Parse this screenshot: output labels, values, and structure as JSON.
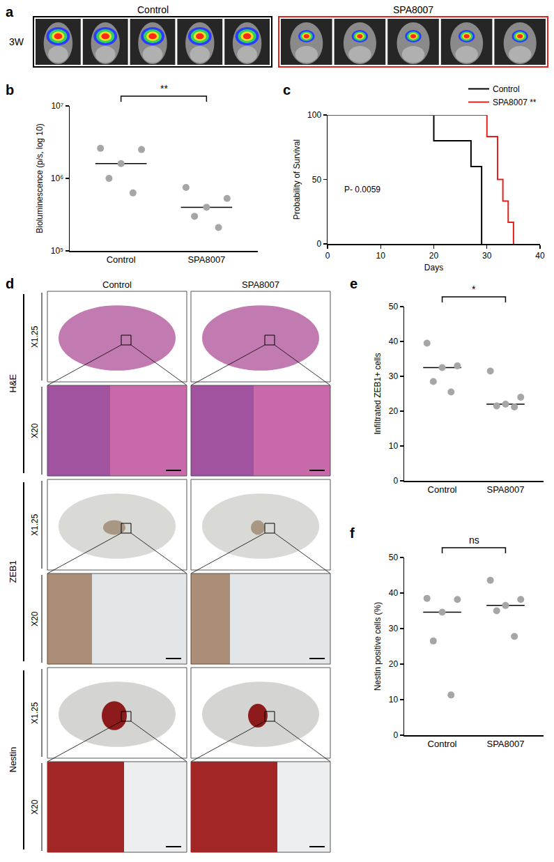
{
  "panel_a": {
    "panel": "a",
    "row_label": "3W",
    "groups": [
      "Control",
      "SPA8007"
    ]
  },
  "chart_data": [
    {
      "panel": "b",
      "type": "dot",
      "categories": [
        "Control",
        "SPA8007"
      ],
      "y_label": "Bioluminescence (p/s, log 10)",
      "log": "y",
      "grid": false,
      "ylim": [
        100000,
        10000000
      ],
      "yticks": [
        {
          "value": 100000,
          "label": "10⁵"
        },
        {
          "value": 1000000,
          "label": "10⁶"
        },
        {
          "value": 10000000,
          "label": "10⁷"
        }
      ],
      "values": [
        [
          2600000,
          2500000,
          1600000,
          1000000,
          630000
        ],
        [
          750000,
          530000,
          400000,
          300000,
          210000
        ]
      ],
      "medians": [
        1600000,
        400000
      ],
      "color": "#a6a6a6",
      "significance": "**"
    },
    {
      "panel": "c",
      "type": "step",
      "x_label": "Days",
      "y_label": "Probability of Survival",
      "grid": false,
      "xlim": [
        0,
        40
      ],
      "xticks": [
        0,
        10,
        20,
        30,
        40
      ],
      "ylim": [
        0,
        100
      ],
      "yticks": [
        0,
        50,
        100
      ],
      "legend": "top right",
      "annotations": [
        "P- 0.0059"
      ],
      "series": [
        {
          "name": "Control",
          "color": "#000000",
          "x": [
            0,
            20,
            27,
            29
          ],
          "values": [
            100,
            80,
            60,
            0
          ]
        },
        {
          "name": "SPA8007 **",
          "color": "#e3211c",
          "x": [
            0,
            30,
            32,
            33,
            34,
            35
          ],
          "values": [
            100,
            83.3,
            50,
            33.3,
            16.7,
            0
          ]
        }
      ]
    },
    {
      "panel": "e",
      "type": "dot",
      "categories": [
        "Control",
        "SPA8007"
      ],
      "y_label": "Infiltrated ZEB1+ cells",
      "grid": false,
      "ylim": [
        0,
        50
      ],
      "yticks": [
        0,
        10,
        20,
        30,
        40,
        50
      ],
      "values": [
        [
          39.5,
          33,
          32.5,
          28.5,
          25.5
        ],
        [
          31.5,
          24,
          22,
          21.5,
          21.2
        ]
      ],
      "medians": [
        32.5,
        22
      ],
      "color": "#a6a6a6",
      "significance": "*"
    },
    {
      "panel": "f",
      "type": "dot",
      "categories": [
        "Control",
        "SPA8007"
      ],
      "y_label": "Nestin positive cells (%)",
      "grid": false,
      "ylim": [
        0,
        50
      ],
      "yticks": [
        0,
        10,
        20,
        30,
        40,
        50
      ],
      "values": [
        [
          38.5,
          38.2,
          34.6,
          26.5,
          11.3
        ],
        [
          43.6,
          38.2,
          36.5,
          35,
          27.8
        ]
      ],
      "medians": [
        34.6,
        36.5
      ],
      "color": "#a6a6a6",
      "significance": "ns"
    }
  ],
  "panel_d": {
    "panel": "d",
    "columns": [
      "Control",
      "SPA8007"
    ],
    "stains": [
      "H&E",
      "ZEB1",
      "Nestin"
    ],
    "magnifications": [
      "X1.25",
      "X20"
    ]
  }
}
